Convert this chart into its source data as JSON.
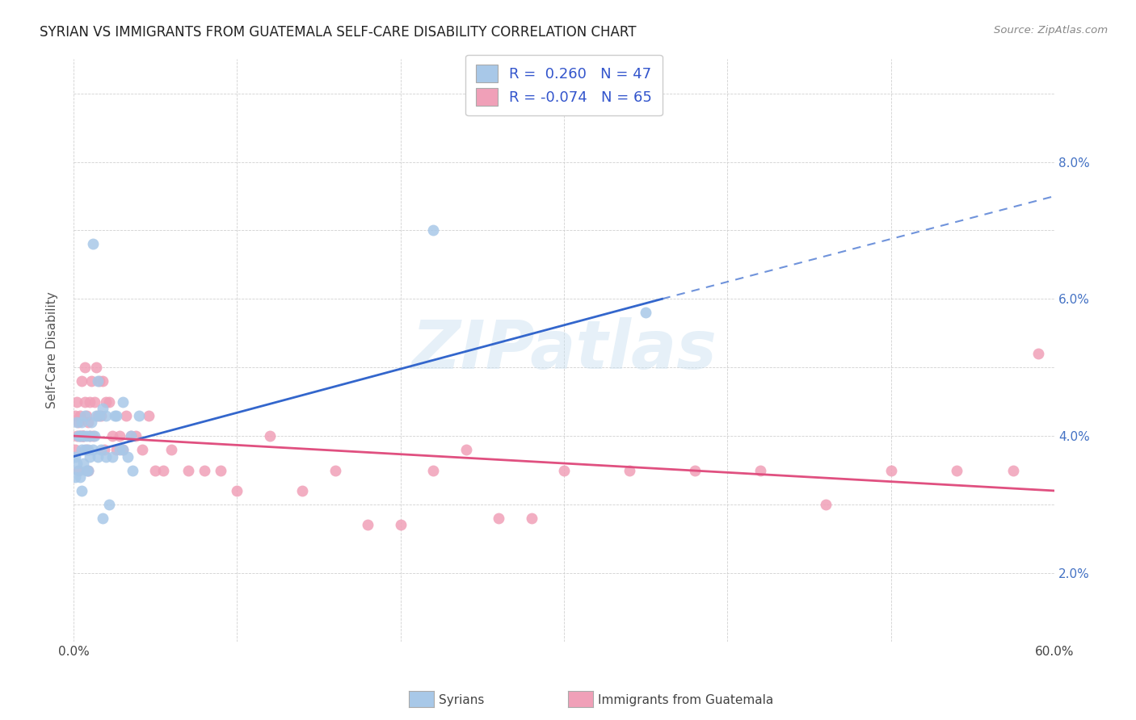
{
  "title": "SYRIAN VS IMMIGRANTS FROM GUATEMALA SELF-CARE DISABILITY CORRELATION CHART",
  "source": "Source: ZipAtlas.com",
  "ylabel": "Self-Care Disability",
  "xlim": [
    0.0,
    0.6
  ],
  "ylim": [
    0.0,
    0.085
  ],
  "R_syrian": 0.26,
  "N_syrian": 47,
  "R_guatemala": -0.074,
  "N_guatemala": 65,
  "color_syrian": "#a8c8e8",
  "color_guatemalan": "#f0a0b8",
  "trend_syrian_color": "#3366cc",
  "trend_guatemalan_color": "#e05080",
  "watermark": "ZIPatlas",
  "legend_label_syrian": "Syrians",
  "legend_label_guatemalan": "Immigrants from Guatemala",
  "syrian_x": [
    0.001,
    0.001,
    0.002,
    0.002,
    0.003,
    0.003,
    0.004,
    0.004,
    0.005,
    0.005,
    0.005,
    0.006,
    0.006,
    0.007,
    0.007,
    0.008,
    0.008,
    0.009,
    0.009,
    0.01,
    0.01,
    0.011,
    0.012,
    0.013,
    0.014,
    0.015,
    0.016,
    0.017,
    0.018,
    0.02,
    0.022,
    0.024,
    0.026,
    0.028,
    0.03,
    0.033,
    0.036,
    0.015,
    0.02,
    0.025,
    0.03,
    0.035,
    0.04,
    0.018,
    0.012,
    0.35,
    0.22
  ],
  "syrian_y": [
    0.027,
    0.024,
    0.032,
    0.026,
    0.025,
    0.03,
    0.03,
    0.024,
    0.022,
    0.028,
    0.032,
    0.026,
    0.03,
    0.028,
    0.033,
    0.025,
    0.03,
    0.025,
    0.028,
    0.027,
    0.03,
    0.032,
    0.028,
    0.03,
    0.033,
    0.027,
    0.033,
    0.028,
    0.034,
    0.027,
    0.02,
    0.027,
    0.033,
    0.028,
    0.035,
    0.027,
    0.025,
    0.038,
    0.033,
    0.033,
    0.028,
    0.03,
    0.033,
    0.018,
    0.058,
    0.048,
    0.06
  ],
  "guatemalan_x": [
    0.001,
    0.001,
    0.002,
    0.002,
    0.003,
    0.003,
    0.004,
    0.004,
    0.005,
    0.005,
    0.006,
    0.006,
    0.007,
    0.007,
    0.008,
    0.008,
    0.009,
    0.009,
    0.01,
    0.01,
    0.011,
    0.012,
    0.013,
    0.014,
    0.015,
    0.016,
    0.017,
    0.018,
    0.019,
    0.02,
    0.022,
    0.024,
    0.026,
    0.028,
    0.03,
    0.032,
    0.035,
    0.038,
    0.042,
    0.046,
    0.05,
    0.055,
    0.06,
    0.07,
    0.08,
    0.09,
    0.1,
    0.12,
    0.14,
    0.16,
    0.18,
    0.2,
    0.22,
    0.24,
    0.26,
    0.28,
    0.3,
    0.34,
    0.38,
    0.42,
    0.46,
    0.5,
    0.54,
    0.575,
    0.59
  ],
  "guatemalan_y": [
    0.028,
    0.033,
    0.03,
    0.035,
    0.025,
    0.032,
    0.033,
    0.03,
    0.03,
    0.038,
    0.03,
    0.03,
    0.035,
    0.04,
    0.028,
    0.033,
    0.025,
    0.032,
    0.03,
    0.035,
    0.038,
    0.03,
    0.035,
    0.04,
    0.033,
    0.038,
    0.033,
    0.038,
    0.028,
    0.035,
    0.035,
    0.03,
    0.028,
    0.03,
    0.028,
    0.033,
    0.03,
    0.03,
    0.028,
    0.033,
    0.025,
    0.025,
    0.028,
    0.025,
    0.025,
    0.025,
    0.022,
    0.03,
    0.022,
    0.025,
    0.017,
    0.017,
    0.025,
    0.028,
    0.018,
    0.018,
    0.025,
    0.025,
    0.025,
    0.025,
    0.02,
    0.025,
    0.025,
    0.025,
    0.042
  ],
  "trend_syrian_x_start": 0.0,
  "trend_syrian_x_solid_end": 0.36,
  "trend_syrian_x_dash_end": 0.6,
  "trend_syrian_y_start": 0.027,
  "trend_syrian_y_solid_end": 0.05,
  "trend_syrian_y_dash_end": 0.065,
  "trend_guatemalan_x_start": 0.0,
  "trend_guatemalan_x_end": 0.6,
  "trend_guatemalan_y_start": 0.03,
  "trend_guatemalan_y_end": 0.022
}
